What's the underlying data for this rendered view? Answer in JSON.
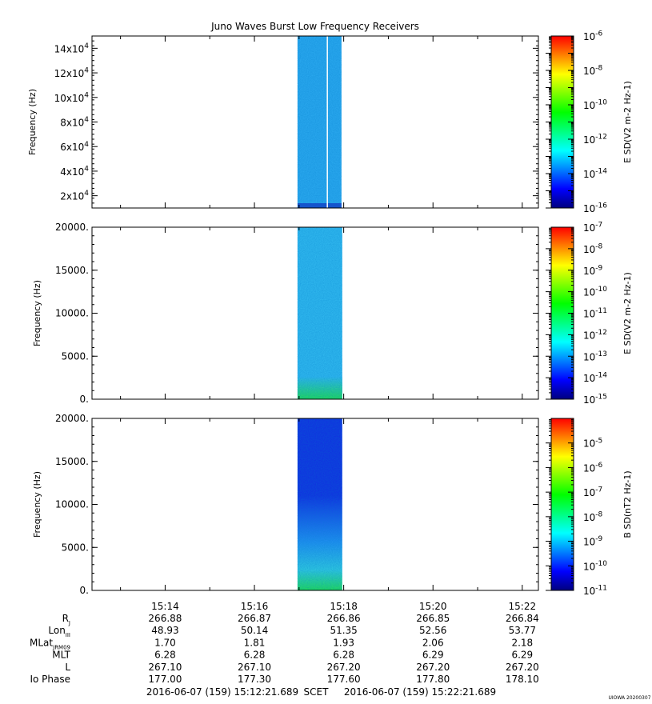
{
  "title": "Juno Waves Burst Low Frequency Receivers",
  "colorbar_colors": [
    "#00007f",
    "#0000ff",
    "#0080ff",
    "#00ffff",
    "#00ff80",
    "#00ff00",
    "#80ff00",
    "#ffff00",
    "#ff8000",
    "#ff0000"
  ],
  "chart_data": [
    {
      "type": "heatmap",
      "name": "panel-1",
      "xlim": [
        "15:12:21.689",
        "15:22:21.689"
      ],
      "ylabel": "Frequency (Hz)",
      "ylim": [
        10000,
        150000
      ],
      "yticks": [
        {
          "value": 20000,
          "mant": "2x10",
          "exp": "4"
        },
        {
          "value": 40000,
          "mant": "4x10",
          "exp": "4"
        },
        {
          "value": 60000,
          "mant": "6x10",
          "exp": "4"
        },
        {
          "value": 80000,
          "mant": "8x10",
          "exp": "4"
        },
        {
          "value": 100000,
          "mant": "10x10",
          "exp": "4"
        },
        {
          "value": 120000,
          "mant": "12x10",
          "exp": "4"
        },
        {
          "value": 140000,
          "mant": "14x10",
          "exp": "4"
        }
      ],
      "data_span": [
        "15:16:58",
        "15:17:57"
      ],
      "data_gap": "15:17:38",
      "fill_color": "#2aa8ee",
      "base_color": "#1a4ccc",
      "cbar_label": "E SD(V2 m-2 Hz-1)",
      "cbar_scale": "log",
      "cbar_range": [
        1e-16,
        1e-06
      ],
      "cbar_ticks": [
        {
          "mant": "10",
          "exp": "-6"
        },
        {
          "mant": "10",
          "exp": "-8"
        },
        {
          "mant": "10",
          "exp": "-10"
        },
        {
          "mant": "10",
          "exp": "-12"
        },
        {
          "mant": "10",
          "exp": "-14"
        },
        {
          "mant": "10",
          "exp": "-16"
        }
      ]
    },
    {
      "type": "heatmap",
      "name": "panel-2",
      "xlim": [
        "15:12:21.689",
        "15:22:21.689"
      ],
      "ylabel": "Frequency (Hz)",
      "ylim": [
        0,
        20000
      ],
      "yticks": [
        {
          "value": 0,
          "label": "0."
        },
        {
          "value": 5000,
          "label": "5000."
        },
        {
          "value": 10000,
          "label": "10000."
        },
        {
          "value": 15000,
          "label": "15000."
        },
        {
          "value": 20000,
          "label": "20000."
        }
      ],
      "data_span": [
        "15:16:58",
        "15:17:58"
      ],
      "fill_color": "#30b8ee",
      "base_color": "#22dd55",
      "cbar_label": "E SD(V2 m-2 Hz-1)",
      "cbar_scale": "log",
      "cbar_range": [
        1e-15,
        1e-07
      ],
      "cbar_ticks": [
        {
          "mant": "10",
          "exp": "-7"
        },
        {
          "mant": "10",
          "exp": "-8"
        },
        {
          "mant": "10",
          "exp": "-9"
        },
        {
          "mant": "10",
          "exp": "-10"
        },
        {
          "mant": "10",
          "exp": "-11"
        },
        {
          "mant": "10",
          "exp": "-12"
        },
        {
          "mant": "10",
          "exp": "-13"
        },
        {
          "mant": "10",
          "exp": "-14"
        },
        {
          "mant": "10",
          "exp": "-15"
        }
      ]
    },
    {
      "type": "heatmap",
      "name": "panel-3",
      "xlim": [
        "15:12:21.689",
        "15:22:21.689"
      ],
      "ylabel": "Frequency (Hz)",
      "ylim": [
        0,
        20000
      ],
      "yticks": [
        {
          "value": 0,
          "label": "0."
        },
        {
          "value": 5000,
          "label": "5000."
        },
        {
          "value": 10000,
          "label": "10000."
        },
        {
          "value": 15000,
          "label": "15000."
        },
        {
          "value": 20000,
          "label": "20000."
        }
      ],
      "data_span": [
        "15:16:58",
        "15:17:58"
      ],
      "fill_top_color": "#1030e0",
      "fill_mid_color": "#2090f0",
      "fill_low_color": "#30c8e0",
      "base_color": "#22dd55",
      "cbar_label": "B SD(nT2 Hz-1)",
      "cbar_scale": "log",
      "cbar_range": [
        1e-11,
        0.0001
      ],
      "cbar_ticks": [
        {
          "mant": "10",
          "exp": "-5"
        },
        {
          "mant": "10",
          "exp": "-6"
        },
        {
          "mant": "10",
          "exp": "-7"
        },
        {
          "mant": "10",
          "exp": "-8"
        },
        {
          "mant": "10",
          "exp": "-9"
        },
        {
          "mant": "10",
          "exp": "-10"
        },
        {
          "mant": "10",
          "exp": "-11"
        }
      ]
    }
  ],
  "x_ticks": [
    "15:14",
    "15:16",
    "15:18",
    "15:20",
    "15:22"
  ],
  "ephemeris": [
    {
      "label": "R",
      "sub": "J",
      "values": [
        "266.88",
        "266.87",
        "266.86",
        "266.85",
        "266.84"
      ]
    },
    {
      "label": "Lon",
      "sub": "III",
      "values": [
        "48.93",
        "50.14",
        "51.35",
        "52.56",
        "53.77"
      ]
    },
    {
      "label": "MLat",
      "sub": "JRM09",
      "values": [
        "1.70",
        "1.81",
        "1.93",
        "2.06",
        "2.18"
      ]
    },
    {
      "label": "MLT",
      "sub": "",
      "values": [
        "6.28",
        "6.28",
        "6.28",
        "6.29",
        "6.29"
      ]
    },
    {
      "label": "L",
      "sub": "",
      "values": [
        "267.10",
        "267.10",
        "267.20",
        "267.20",
        "267.20"
      ]
    },
    {
      "label": "Io Phase",
      "sub": "",
      "values": [
        "177.00",
        "177.30",
        "177.60",
        "177.80",
        "178.10"
      ]
    }
  ],
  "footer": {
    "start": "2016-06-07 (159) 15:12:21.689",
    "scet": "SCET",
    "end": "2016-06-07 (159) 15:22:21.689",
    "credit": "UIOWA 20200307"
  }
}
